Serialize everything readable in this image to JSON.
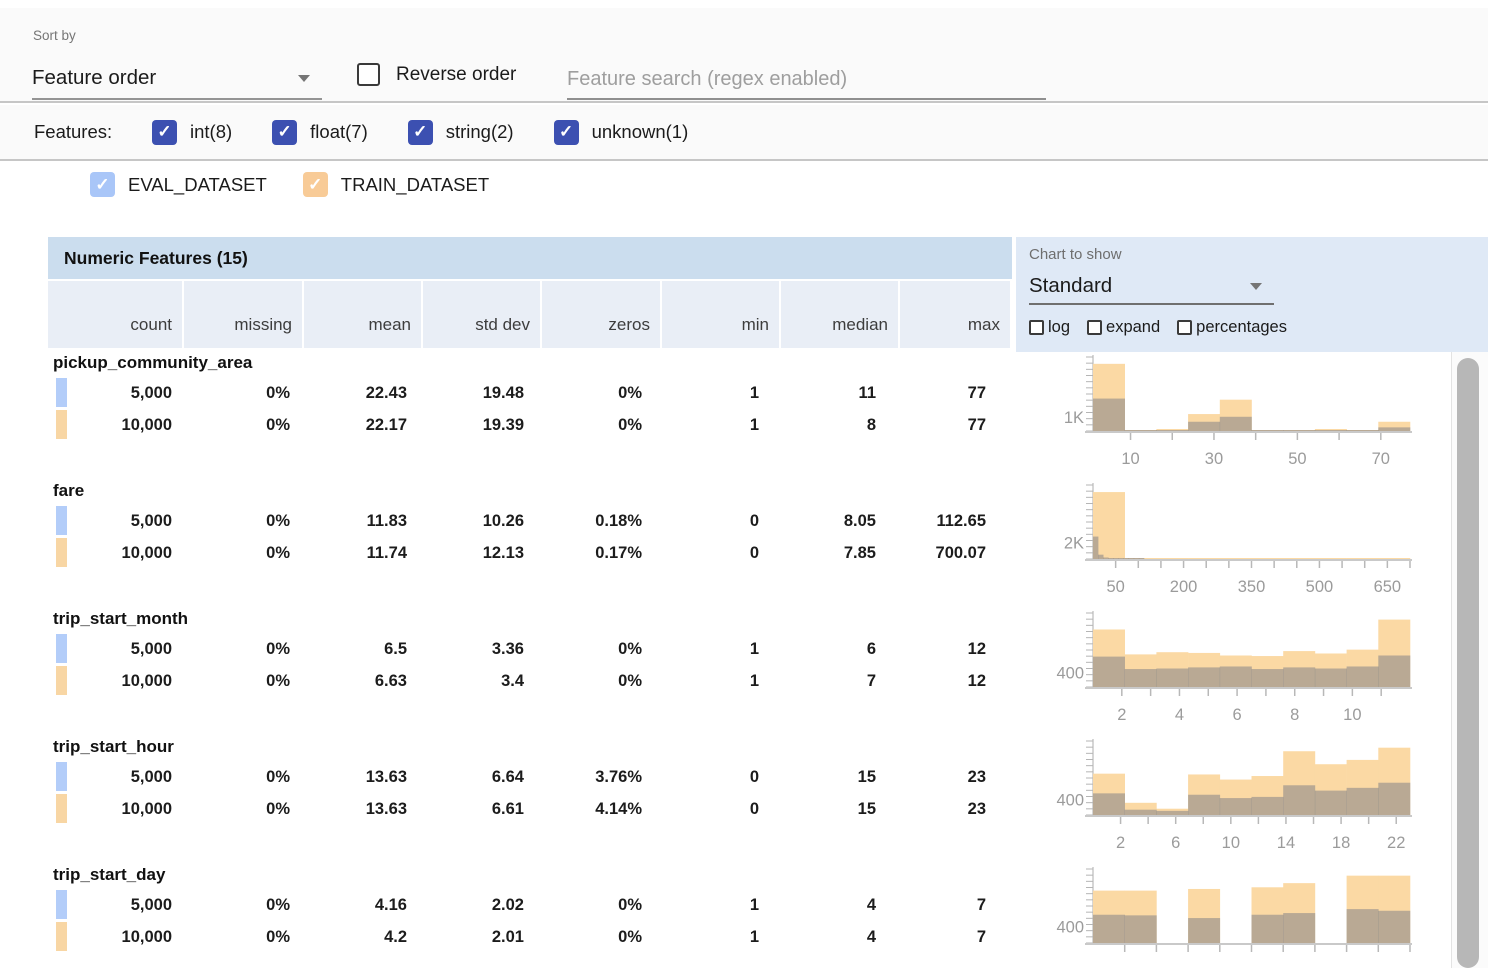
{
  "toolbar": {
    "sort_by_label": "Sort by",
    "sort_value": "Feature order",
    "reverse_label": "Reverse order",
    "search_placeholder": "Feature search (regex enabled)"
  },
  "filters": {
    "label": "Features:",
    "types": [
      {
        "label": "int(8)",
        "checked": true
      },
      {
        "label": "float(7)",
        "checked": true
      },
      {
        "label": "string(2)",
        "checked": true
      },
      {
        "label": "unknown(1)",
        "checked": true
      }
    ]
  },
  "datasets": [
    {
      "name": "EVAL_DATASET",
      "checked": true,
      "checkbox_color": "#a9c6f8",
      "swatch_color": "#b3cdf9"
    },
    {
      "name": "TRAIN_DATASET",
      "checked": true,
      "checkbox_color": "#f8cb97",
      "swatch_color": "#f8d6a4"
    }
  ],
  "table": {
    "title": "Numeric Features (15)",
    "columns": [
      "count",
      "missing",
      "mean",
      "std dev",
      "zeros",
      "min",
      "median",
      "max"
    ],
    "chart_controls": {
      "label": "Chart to show",
      "selected": "Standard",
      "checkboxes": [
        {
          "label": "log",
          "checked": false
        },
        {
          "label": "expand",
          "checked": false
        },
        {
          "label": "percentages",
          "checked": false
        }
      ]
    }
  },
  "colors": {
    "accent_indigo": "#3c50b1",
    "hist_train_bar": "#fbd9a4",
    "hist_eval_overlay": "rgba(105,110,128,0.45)",
    "table_title_bg": "#cbddee",
    "col_header_bg": "#e9eef6",
    "chart_panel_bg": "#dfe9f6"
  },
  "features": [
    {
      "name": "pickup_community_area",
      "rows": [
        {
          "dataset": "eval",
          "values": [
            "5,000",
            "0%",
            "22.43",
            "19.48",
            "0%",
            "1",
            "11",
            "77"
          ]
        },
        {
          "dataset": "train",
          "values": [
            "10,000",
            "0%",
            "22.17",
            "19.39",
            "0%",
            "1",
            "8",
            "77"
          ]
        }
      ],
      "chart_data": {
        "type": "histogram-overlay",
        "ylabel": "1K",
        "ylabel_value": 1000,
        "ymax": 5200,
        "xmin": 1,
        "xmax": 77,
        "xticks": [
          10,
          20,
          30,
          40,
          50,
          60,
          70
        ],
        "xtick_labels": [
          10,
          30,
          50,
          70
        ],
        "train_bins": [
          [
            1,
            8.6,
            4720
          ],
          [
            8.6,
            16.2,
            30
          ],
          [
            16.2,
            23.8,
            140
          ],
          [
            23.8,
            31.4,
            1190
          ],
          [
            31.4,
            39,
            2200
          ],
          [
            39,
            46.6,
            30
          ],
          [
            46.6,
            54.2,
            20
          ],
          [
            54.2,
            61.8,
            140
          ],
          [
            61.8,
            69.4,
            20
          ],
          [
            69.4,
            77,
            650
          ]
        ],
        "eval_bins": [
          [
            1,
            8.6,
            2280
          ],
          [
            8.6,
            16.2,
            20
          ],
          [
            16.2,
            23.8,
            60
          ],
          [
            23.8,
            31.4,
            650
          ],
          [
            31.4,
            39,
            1000
          ],
          [
            39,
            46.6,
            15
          ],
          [
            46.6,
            54.2,
            15
          ],
          [
            54.2,
            61.8,
            60
          ],
          [
            61.8,
            69.4,
            15
          ],
          [
            69.4,
            77,
            255
          ]
        ]
      }
    },
    {
      "name": "fare",
      "rows": [
        {
          "dataset": "eval",
          "values": [
            "5,000",
            "0%",
            "11.83",
            "10.26",
            "0.18%",
            "0",
            "8.05",
            "112.65"
          ]
        },
        {
          "dataset": "train",
          "values": [
            "10,000",
            "0%",
            "11.74",
            "12.13",
            "0.17%",
            "0",
            "7.85",
            "700.07"
          ]
        }
      ],
      "chart_data": {
        "type": "histogram-overlay",
        "ylabel": "2K",
        "ylabel_value": 2000,
        "ymax": 8900,
        "xmin": 0,
        "xmax": 700,
        "xticks": [
          50,
          100,
          150,
          200,
          250,
          300,
          350,
          400,
          450,
          500,
          550,
          600,
          650,
          700
        ],
        "xtick_labels": [
          50,
          200,
          350,
          500,
          650
        ],
        "train_bins": [
          [
            0,
            70,
            8050
          ],
          [
            70,
            140,
            60
          ],
          [
            140,
            210,
            25
          ],
          [
            210,
            280,
            12
          ],
          [
            280,
            350,
            6
          ],
          [
            350,
            420,
            4
          ],
          [
            420,
            490,
            3
          ],
          [
            490,
            560,
            2
          ],
          [
            560,
            630,
            2
          ],
          [
            630,
            700,
            2
          ]
        ],
        "eval_bins": [
          [
            0,
            11.27,
            2700
          ],
          [
            11.27,
            22.53,
            520
          ],
          [
            22.53,
            33.8,
            180
          ],
          [
            33.8,
            45.06,
            80
          ],
          [
            45.06,
            56.33,
            40
          ],
          [
            56.33,
            67.59,
            20
          ],
          [
            67.59,
            78.86,
            15
          ],
          [
            78.86,
            90.12,
            10
          ],
          [
            90.12,
            101.39,
            8
          ],
          [
            101.39,
            112.65,
            5
          ]
        ]
      }
    },
    {
      "name": "trip_start_month",
      "rows": [
        {
          "dataset": "eval",
          "values": [
            "5,000",
            "0%",
            "6.5",
            "3.36",
            "0%",
            "1",
            "6",
            "12"
          ]
        },
        {
          "dataset": "train",
          "values": [
            "10,000",
            "0%",
            "6.63",
            "3.4",
            "0%",
            "1",
            "7",
            "12"
          ]
        }
      ],
      "chart_data": {
        "type": "histogram-overlay",
        "ylabel": "400",
        "ylabel_value": 400,
        "ymax": 2020,
        "xmin": 1,
        "xmax": 12,
        "xticks": [
          2,
          3,
          4,
          5,
          6,
          7,
          8,
          9,
          10,
          11
        ],
        "xtick_labels": [
          2,
          4,
          6,
          8,
          10
        ],
        "train_bins": [
          [
            1,
            2.1,
            1570
          ],
          [
            2.1,
            3.2,
            890
          ],
          [
            3.2,
            4.3,
            950
          ],
          [
            4.3,
            5.4,
            930
          ],
          [
            5.4,
            6.5,
            860
          ],
          [
            6.5,
            7.6,
            845
          ],
          [
            7.6,
            8.7,
            980
          ],
          [
            8.7,
            9.8,
            915
          ],
          [
            9.8,
            10.9,
            1020
          ],
          [
            10.9,
            12,
            1840
          ]
        ],
        "eval_bins": [
          [
            1,
            2.1,
            830
          ],
          [
            2.1,
            3.2,
            490
          ],
          [
            3.2,
            4.3,
            505
          ],
          [
            4.3,
            5.4,
            535
          ],
          [
            5.4,
            6.5,
            560
          ],
          [
            6.5,
            7.6,
            490
          ],
          [
            7.6,
            8.7,
            535
          ],
          [
            8.7,
            9.8,
            505
          ],
          [
            9.8,
            10.9,
            560
          ],
          [
            10.9,
            12,
            860
          ]
        ]
      }
    },
    {
      "name": "trip_start_hour",
      "rows": [
        {
          "dataset": "eval",
          "values": [
            "5,000",
            "0%",
            "13.63",
            "6.64",
            "3.76%",
            "0",
            "15",
            "23"
          ]
        },
        {
          "dataset": "train",
          "values": [
            "10,000",
            "0%",
            "13.63",
            "6.61",
            "4.14%",
            "0",
            "15",
            "23"
          ]
        }
      ],
      "chart_data": {
        "type": "histogram-overlay",
        "ylabel": "400",
        "ylabel_value": 400,
        "ymax": 1880,
        "xmin": 0,
        "xmax": 23,
        "xticks": [
          2,
          4,
          6,
          8,
          10,
          12,
          14,
          16,
          18,
          20,
          22
        ],
        "xtick_labels": [
          2,
          6,
          10,
          14,
          18,
          22
        ],
        "train_bins": [
          [
            0,
            2.3,
            1050
          ],
          [
            2.3,
            4.6,
            310
          ],
          [
            4.6,
            6.9,
            160
          ],
          [
            6.9,
            9.2,
            1030
          ],
          [
            9.2,
            11.5,
            900
          ],
          [
            11.5,
            13.8,
            990
          ],
          [
            13.8,
            16.1,
            1620
          ],
          [
            16.1,
            18.4,
            1290
          ],
          [
            18.4,
            20.7,
            1400
          ],
          [
            20.7,
            23,
            1710
          ]
        ],
        "eval_bins": [
          [
            0,
            2.3,
            550
          ],
          [
            2.3,
            4.6,
            135
          ],
          [
            4.6,
            6.9,
            105
          ],
          [
            6.9,
            9.2,
            515
          ],
          [
            9.2,
            11.5,
            430
          ],
          [
            11.5,
            13.8,
            460
          ],
          [
            13.8,
            16.1,
            755
          ],
          [
            16.1,
            18.4,
            620
          ],
          [
            18.4,
            20.7,
            690
          ],
          [
            20.7,
            23,
            820
          ]
        ]
      }
    },
    {
      "name": "trip_start_day",
      "rows": [
        {
          "dataset": "eval",
          "values": [
            "5,000",
            "0%",
            "4.16",
            "2.02",
            "0%",
            "1",
            "4",
            "7"
          ]
        },
        {
          "dataset": "train",
          "values": [
            "10,000",
            "0%",
            "4.2",
            "2.01",
            "0%",
            "1",
            "4",
            "7"
          ]
        }
      ],
      "chart_data": {
        "type": "histogram-overlay",
        "ylabel": "400",
        "ylabel_value": 400,
        "ymax": 1780,
        "xmin": 1,
        "xmax": 7,
        "xticks": [
          1.6,
          2.2,
          2.8,
          3.4,
          4,
          4.6,
          5.2,
          5.8,
          6.4,
          7
        ],
        "xtick_labels": [],
        "train_bins": [
          [
            1,
            1.6,
            1260
          ],
          [
            1.6,
            2.2,
            1260
          ],
          [
            2.2,
            2.8,
            0
          ],
          [
            2.8,
            3.4,
            1300
          ],
          [
            3.4,
            4,
            0
          ],
          [
            4,
            4.6,
            1340
          ],
          [
            4.6,
            5.2,
            1440
          ],
          [
            5.2,
            5.8,
            0
          ],
          [
            5.8,
            6.4,
            1620
          ],
          [
            6.4,
            7,
            1620
          ]
        ],
        "eval_bins": [
          [
            1,
            1.6,
            680
          ],
          [
            1.6,
            2.2,
            665
          ],
          [
            2.2,
            2.8,
            0
          ],
          [
            2.8,
            3.4,
            600
          ],
          [
            3.4,
            4,
            0
          ],
          [
            4,
            4.6,
            680
          ],
          [
            4.6,
            5.2,
            720
          ],
          [
            5.2,
            5.8,
            0
          ],
          [
            5.8,
            6.4,
            815
          ],
          [
            6.4,
            7,
            775
          ]
        ]
      }
    }
  ]
}
